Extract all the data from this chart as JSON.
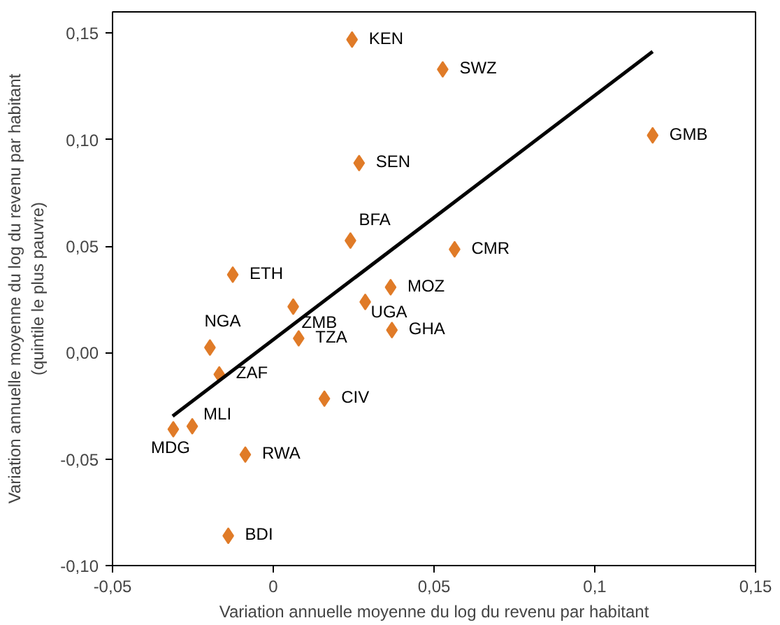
{
  "chart_data": {
    "type": "scatter",
    "xlabel": "Variation annuelle moyenne du log du revenu par habitant",
    "ylabel": "Variation annuelle moyenne du log du revenu par habitant\n(quintile le plus pauvre)",
    "xlim": [
      -0.05,
      0.15
    ],
    "ylim": [
      -0.1,
      0.16
    ],
    "xticks": [
      {
        "value": -0.05,
        "label": "-0,05"
      },
      0,
      {
        "value": 0.05,
        "label": "0,05"
      },
      {
        "value": 0.1,
        "label": "0,1"
      },
      {
        "value": 0.15,
        "label": "0,15"
      }
    ],
    "yticks": [
      {
        "value": -0.1,
        "label": "-0,10"
      },
      {
        "value": -0.05,
        "label": "-0,05"
      },
      {
        "value": 0,
        "label": "0,00"
      },
      {
        "value": 0.05,
        "label": "0,05"
      },
      {
        "value": 0.1,
        "label": "0,10"
      },
      {
        "value": 0.15,
        "label": "0,15"
      }
    ],
    "grid": false,
    "series": [
      {
        "marker": "diamond",
        "color": "#e07b28",
        "x": [
          0.0245,
          0.0527,
          0.118,
          0.0267,
          0.024,
          0.0564,
          -0.0126,
          0.0365,
          0.0062,
          0.0286,
          0.0369,
          0.0079,
          -0.0197,
          -0.0168,
          0.0159,
          -0.0252,
          -0.0311,
          -0.0087,
          -0.014
        ],
        "values": [
          0.147,
          0.133,
          0.102,
          0.089,
          0.0526,
          0.0485,
          0.0366,
          0.0307,
          0.0216,
          0.0238,
          0.0106,
          0.0067,
          0.0024,
          -0.0102,
          -0.0216,
          -0.0346,
          -0.036,
          -0.0479,
          -0.086
        ]
      },
      {
        "type": "line",
        "color": "#000000",
        "x": [
          -0.0313,
          0.118
        ],
        "values": [
          -0.0298,
          0.1414
        ]
      }
    ],
    "annotations": [
      {
        "text": "KEN",
        "x": 0.0245,
        "y": 0.147
      },
      {
        "text": "SWZ",
        "x": 0.0527,
        "y": 0.133
      },
      {
        "text": "GMB",
        "x": 0.118,
        "y": 0.102
      },
      {
        "text": "SEN",
        "x": 0.0267,
        "y": 0.089
      },
      {
        "text": "BFA",
        "x": 0.024,
        "y": 0.0526
      },
      {
        "text": "CMR",
        "x": 0.0564,
        "y": 0.0485
      },
      {
        "text": "ETH",
        "x": -0.0126,
        "y": 0.0366
      },
      {
        "text": "MOZ",
        "x": 0.0365,
        "y": 0.0307
      },
      {
        "text": "ZMB",
        "x": 0.0062,
        "y": 0.0216
      },
      {
        "text": "UGA",
        "x": 0.0286,
        "y": 0.0238
      },
      {
        "text": "GHA",
        "x": 0.0369,
        "y": 0.0106
      },
      {
        "text": "TZA",
        "x": 0.0079,
        "y": 0.0067
      },
      {
        "text": "NGA",
        "x": -0.0197,
        "y": 0.0024
      },
      {
        "text": "ZAF",
        "x": -0.0168,
        "y": -0.0102
      },
      {
        "text": "CIV",
        "x": 0.0159,
        "y": -0.0216
      },
      {
        "text": "MLI",
        "x": -0.0252,
        "y": -0.0346
      },
      {
        "text": "MDG",
        "x": -0.0311,
        "y": -0.036
      },
      {
        "text": "RWA",
        "x": -0.0087,
        "y": -0.0479
      },
      {
        "text": "BDI",
        "x": -0.014,
        "y": -0.086
      }
    ]
  }
}
